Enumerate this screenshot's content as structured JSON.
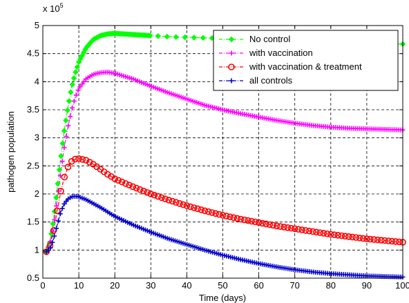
{
  "chart_data": {
    "type": "line",
    "title": "",
    "xlabel": "Time (days)",
    "ylabel": "pathogen population",
    "y_exponent_label": "x 10",
    "y_exponent": "5",
    "xlim": [
      0,
      100
    ],
    "ylim": [
      0.5,
      5
    ],
    "x_ticks": [
      0,
      10,
      20,
      30,
      40,
      50,
      60,
      70,
      80,
      90,
      100
    ],
    "y_ticks": [
      0.5,
      1,
      1.5,
      2,
      2.5,
      3,
      3.5,
      4,
      4.5,
      5
    ],
    "grid": true,
    "legend_position": "top-right",
    "x": [
      1,
      2,
      3,
      4,
      5,
      6,
      7,
      8,
      9,
      10,
      12,
      14,
      16,
      18,
      20,
      25,
      30,
      35,
      40,
      45,
      50,
      55,
      60,
      65,
      70,
      75,
      80,
      85,
      90,
      95,
      100
    ],
    "series": [
      {
        "name": "No control",
        "color": "#00ff00",
        "marker": "diamond",
        "values": [
          0.97,
          1.15,
          1.55,
          2.1,
          2.65,
          3.15,
          3.55,
          3.9,
          4.15,
          4.35,
          4.6,
          4.75,
          4.82,
          4.85,
          4.86,
          4.84,
          4.82,
          4.8,
          4.79,
          4.78,
          4.77,
          4.76,
          4.75,
          4.74,
          4.73,
          4.72,
          4.71,
          4.7,
          4.69,
          4.68,
          4.67
        ]
      },
      {
        "name": "with vaccination",
        "color": "#ff00ff",
        "marker": "plus",
        "values": [
          0.97,
          1.12,
          1.45,
          1.9,
          2.4,
          2.85,
          3.2,
          3.5,
          3.72,
          3.88,
          4.05,
          4.13,
          4.16,
          4.17,
          4.15,
          4.05,
          3.92,
          3.8,
          3.69,
          3.58,
          3.5,
          3.43,
          3.37,
          3.31,
          3.26,
          3.22,
          3.19,
          3.17,
          3.16,
          3.15,
          3.14
        ]
      },
      {
        "name": "with vaccination & treatment",
        "color": "#ff0000",
        "marker": "circle",
        "values": [
          0.97,
          1.08,
          1.35,
          1.7,
          2.05,
          2.3,
          2.48,
          2.58,
          2.62,
          2.63,
          2.6,
          2.53,
          2.44,
          2.35,
          2.27,
          2.13,
          2.0,
          1.89,
          1.79,
          1.7,
          1.62,
          1.55,
          1.49,
          1.43,
          1.38,
          1.33,
          1.28,
          1.24,
          1.2,
          1.17,
          1.14
        ]
      },
      {
        "name": "all controls",
        "color": "#0000cc",
        "marker": "plus",
        "values": [
          0.97,
          1.02,
          1.2,
          1.45,
          1.68,
          1.83,
          1.91,
          1.95,
          1.96,
          1.95,
          1.9,
          1.83,
          1.76,
          1.68,
          1.6,
          1.45,
          1.32,
          1.2,
          1.1,
          1.0,
          0.91,
          0.83,
          0.76,
          0.7,
          0.65,
          0.61,
          0.58,
          0.56,
          0.54,
          0.53,
          0.52
        ]
      }
    ]
  }
}
